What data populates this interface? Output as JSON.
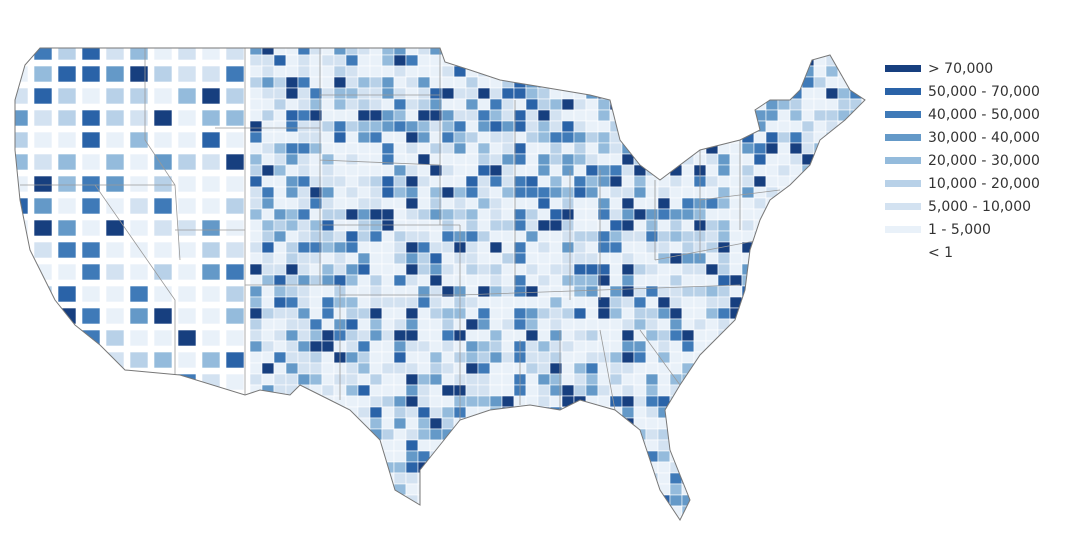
{
  "legend": {
    "items": [
      {
        "label": "> 70,000",
        "color": "#173f7f"
      },
      {
        "label": "50,000 - 70,000",
        "color": "#2a63a8"
      },
      {
        "label": "40,000 - 50,000",
        "color": "#3f7ab8"
      },
      {
        "label": "30,000 - 40,000",
        "color": "#6499c8"
      },
      {
        "label": "20,000 - 30,000",
        "color": "#94bbdc"
      },
      {
        "label": "10,000 - 20,000",
        "color": "#b8d1e8"
      },
      {
        "label": "5,000 - 10,000",
        "color": "#d3e2f1"
      },
      {
        "label": "1 - 5,000",
        "color": "#e9f1f9"
      },
      {
        "label": "< 1",
        "color": "#ffffff"
      }
    ]
  },
  "map": {
    "region": "United States counties",
    "border_color": "#888888"
  }
}
